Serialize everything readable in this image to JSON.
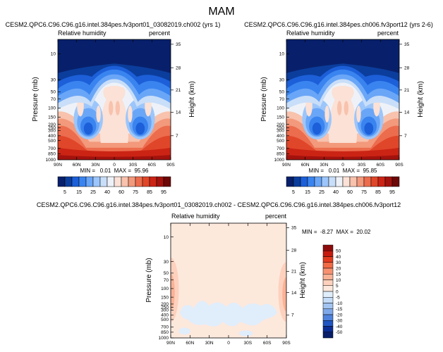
{
  "page_title": "MAM",
  "chart_data": [
    {
      "type": "heatmap",
      "title": "CESM2.QPC6.C96.C96.g16.intel.384pes.fv3port01_03082019.ch002 (yrs 1)",
      "left_label": "Relative humidity",
      "right_label": "percent",
      "ylabel": "Pressure (mb)",
      "y2label": "Height (km)",
      "x_ticks": [
        "90N",
        "60N",
        "30N",
        "0",
        "30S",
        "60S",
        "90S"
      ],
      "y_ticks": [
        "10",
        "30",
        "50",
        "70",
        "100",
        "150",
        "200",
        "250",
        "300",
        "400",
        "500",
        "700",
        "850",
        "1000"
      ],
      "y2_ticks": [
        "35",
        "28",
        "21",
        "14",
        "7"
      ],
      "stats": "MIN =   0.01  MAX =  95.96",
      "variant": "control"
    },
    {
      "type": "heatmap",
      "title": "CESM2.QPC6.C96.C96.g16.intel.384pes.ch006.fv3port12 (yrs 2-6)",
      "left_label": "Relative humidity",
      "right_label": "percent",
      "ylabel": "Pressure (mb)",
      "y2label": "Height (km)",
      "x_ticks": [
        "90N",
        "60N",
        "30N",
        "0",
        "30S",
        "60S",
        "90S"
      ],
      "y_ticks": [
        "10",
        "30",
        "50",
        "70",
        "100",
        "150",
        "200",
        "250",
        "300",
        "400",
        "500",
        "700",
        "850",
        "1000"
      ],
      "y2_ticks": [
        "35",
        "28",
        "21",
        "14",
        "7"
      ],
      "stats": "MIN =   0.01  MAX =  95.85",
      "variant": "test"
    },
    {
      "type": "heatmap",
      "title": "CESM2.QPC6.C96.C96.g16.intel.384pes.fv3port01_03082019.ch002 - CESM2.QPC6.C96.C96.g16.intel.384pes.ch006.fv3port12",
      "left_label": "Relative humidity",
      "right_label": "percent",
      "ylabel": "Pressure (mb)",
      "y2label": "Height (km)",
      "x_ticks": [
        "90N",
        "60N",
        "30N",
        "0",
        "30S",
        "60S",
        "90S"
      ],
      "y_ticks": [
        "10",
        "30",
        "50",
        "70",
        "100",
        "150",
        "200",
        "250",
        "300",
        "400",
        "500",
        "700",
        "850",
        "1000"
      ],
      "y2_ticks": [
        "35",
        "28",
        "21",
        "14",
        "7"
      ],
      "stats": "MIN =  -8.27  MAX =  20.02",
      "variant": "diff"
    }
  ],
  "colorbar_top": {
    "labels": [
      "5",
      "15",
      "25",
      "40",
      "60",
      "75",
      "85",
      "95"
    ],
    "colors": [
      "#08206b",
      "#0b3d9c",
      "#1c5fd8",
      "#3a84f0",
      "#6aa6f7",
      "#9cc6fb",
      "#c9def8",
      "#eef2f8",
      "#fbe1d6",
      "#f8c2ad",
      "#f3997c",
      "#ec6c4e",
      "#e04629",
      "#cb2415",
      "#a3120d",
      "#6e0707"
    ]
  },
  "colorbar_diff": {
    "labels": [
      "50",
      "40",
      "30",
      "20",
      "15",
      "10",
      "5",
      "0",
      "-5",
      "-10",
      "-15",
      "-20",
      "-30",
      "-40",
      "-50"
    ],
    "colors": [
      "#8e0b0b",
      "#c61a10",
      "#e33a1e",
      "#f06a44",
      "#f79170",
      "#fab296",
      "#fdd1bd",
      "#fde8dc",
      "#e0edfb",
      "#c4dcf7",
      "#a2c4f2",
      "#7ea8ea",
      "#4f82dd",
      "#2155c2",
      "#0b2c94",
      "#081e6a"
    ]
  }
}
